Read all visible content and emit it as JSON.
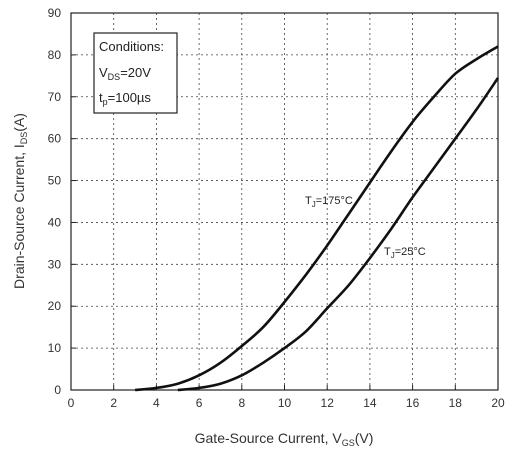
{
  "chart_data": {
    "type": "line",
    "xlabel": "Gate-Source Current, V",
    "xlabel_sub": "GS",
    "xlabel_unit": "(V)",
    "ylabel": "Drain-Source Current, I",
    "ylabel_sub": "DS",
    "ylabel_unit": "(A)",
    "xlim": [
      0,
      20
    ],
    "ylim": [
      0,
      90
    ],
    "xticks": [
      "0",
      "2",
      "4",
      "6",
      "8",
      "10",
      "12",
      "14",
      "16",
      "18",
      "20"
    ],
    "yticks": [
      "0",
      "10",
      "20",
      "30",
      "40",
      "50",
      "60",
      "70",
      "80",
      "90"
    ],
    "grid": true,
    "conditions": {
      "title": "Conditions:",
      "line1_main": "V",
      "line1_sub": "DS",
      "line1_val": "=20V",
      "line2_main": "t",
      "line2_sub": "p",
      "line2_val": "=100µs"
    },
    "series": [
      {
        "label_main": "T",
        "label_sub": "J",
        "label_val": "=175°C",
        "x": [
          3,
          4,
          5,
          6,
          7,
          8,
          9,
          10,
          11,
          12,
          13,
          14,
          15,
          16,
          17,
          18,
          19,
          20
        ],
        "values": [
          0,
          0.5,
          1.5,
          3.5,
          6.5,
          10.5,
          15,
          21,
          27.5,
          34.5,
          42,
          49.5,
          57,
          64,
          70,
          75.5,
          79,
          82
        ]
      },
      {
        "label_main": "T",
        "label_sub": "J",
        "label_val": "=25°C",
        "x": [
          5,
          6,
          7,
          8,
          9,
          10,
          11,
          12,
          13,
          14,
          15,
          16,
          17,
          18,
          19,
          20
        ],
        "values": [
          0,
          0.5,
          1.5,
          3.5,
          6.5,
          10,
          14,
          19.5,
          25,
          31.5,
          38.5,
          46,
          53,
          60,
          67,
          74.5
        ]
      }
    ]
  }
}
